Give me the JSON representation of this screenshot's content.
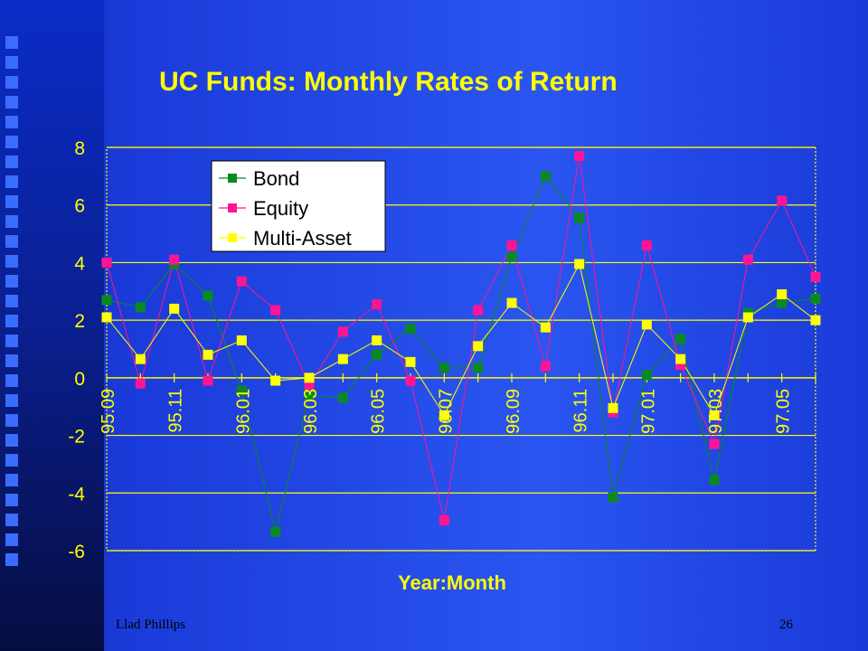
{
  "slide": {
    "author": "Llad Phillips",
    "page_number": "26"
  },
  "colors": {
    "title": "#ffff00",
    "axis_text": "#ffff00",
    "grid": "#ffff00",
    "Bond": "#0a8a1e",
    "Equity": "#ff1493",
    "Multi-Asset": "#ffff00"
  },
  "chart_data": {
    "type": "line",
    "title": "UC Funds: Monthly Rates of Return",
    "xlabel": "Year:Month",
    "ylabel": "",
    "ylim": [
      -6,
      8
    ],
    "yticks": [
      "8",
      "6",
      "4",
      "2",
      "0",
      "-2",
      "-4",
      "-6"
    ],
    "x": [
      "95.09",
      "95.10",
      "95.11",
      "95.12",
      "96.01",
      "96.02",
      "96.03",
      "96.04",
      "96.05",
      "96.06",
      "96.07",
      "96.08",
      "96.09",
      "96.10",
      "96.11",
      "96.12",
      "97.01",
      "97.02",
      "97.03",
      "97.04",
      "97.05",
      "97.06"
    ],
    "xtick_labels": [
      "95.09",
      "95.11",
      "96.01",
      "96.03",
      "96.05",
      "96.07",
      "96.09",
      "96.11",
      "97.01",
      "97.03",
      "97.05"
    ],
    "grid": true,
    "legend_position": "top-left",
    "series": [
      {
        "name": "Bond",
        "values": [
          2.7,
          2.45,
          3.95,
          2.85,
          -0.45,
          -5.35,
          -0.6,
          -0.7,
          0.8,
          1.7,
          0.35,
          0.35,
          4.2,
          7.0,
          5.55,
          -4.15,
          0.1,
          1.35,
          -3.55,
          2.25,
          2.6,
          2.75
        ]
      },
      {
        "name": "Equity",
        "values": [
          4.0,
          -0.2,
          4.1,
          -0.1,
          3.35,
          2.35,
          -0.25,
          1.6,
          2.55,
          -0.1,
          -4.95,
          2.35,
          4.6,
          0.4,
          7.7,
          -1.2,
          4.6,
          0.45,
          -2.3,
          4.1,
          6.15,
          3.5
        ]
      },
      {
        "name": "Multi-Asset",
        "values": [
          2.1,
          0.65,
          2.4,
          0.8,
          1.3,
          -0.1,
          0.0,
          0.65,
          1.3,
          0.55,
          -1.3,
          1.1,
          2.6,
          1.75,
          3.95,
          -1.05,
          1.85,
          0.65,
          -1.3,
          2.1,
          2.9,
          2.0
        ]
      }
    ]
  }
}
